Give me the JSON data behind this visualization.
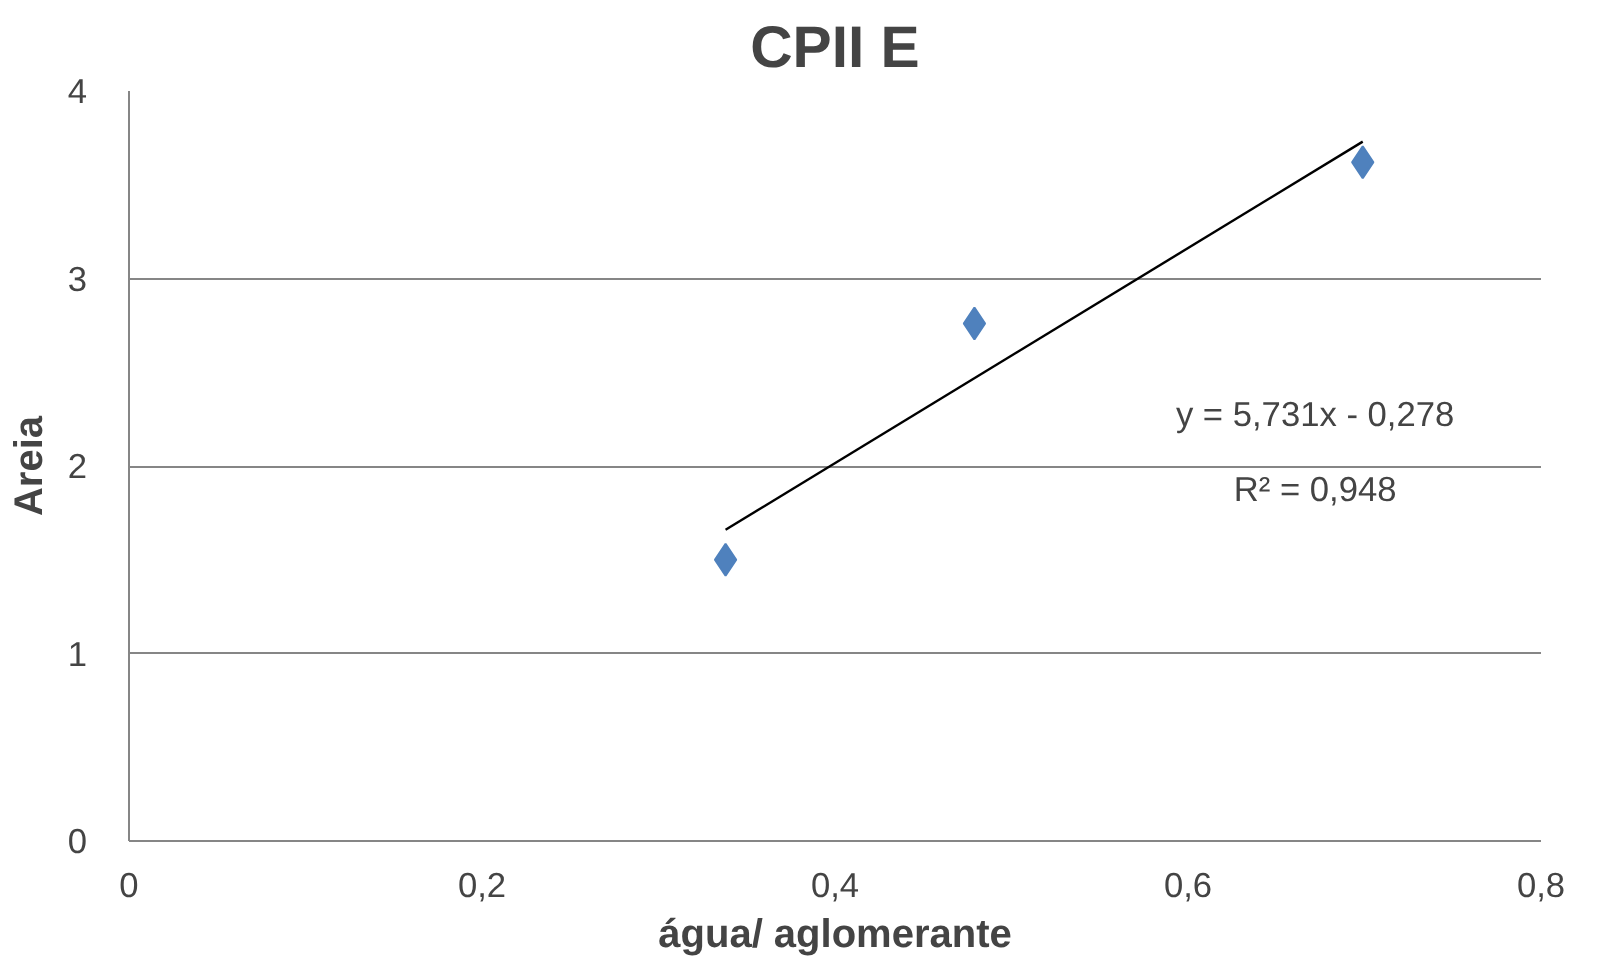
{
  "chart_data": {
    "type": "scatter",
    "title": "CPII E",
    "xlabel": "água/ aglomerante",
    "ylabel": "Areia",
    "series": [
      {
        "marker": "diamond",
        "color": "#4f81bd",
        "x": [
          0.338,
          0.479,
          0.699
        ],
        "values": [
          1.5,
          2.76,
          3.62
        ]
      },
      {
        "type": "line",
        "marker": "none",
        "color": "#000000",
        "x": [
          0.338,
          0.699
        ],
        "values": [
          1.66,
          3.73
        ]
      }
    ],
    "xlim": [
      0,
      0.8
    ],
    "ylim": [
      0,
      4
    ],
    "xticks": [
      0,
      {
        "value": 0.2,
        "label": "0,2"
      },
      {
        "value": 0.4,
        "label": "0,4"
      },
      {
        "value": 0.6,
        "label": "0,6"
      },
      {
        "value": 0.8,
        "label": "0,8"
      }
    ],
    "yticks": [
      0,
      1,
      2,
      3,
      4
    ],
    "grid": "y",
    "line_style": "solid",
    "annotations": [
      "y = 5,731x - 0,278",
      "R² = 0,948"
    ]
  }
}
